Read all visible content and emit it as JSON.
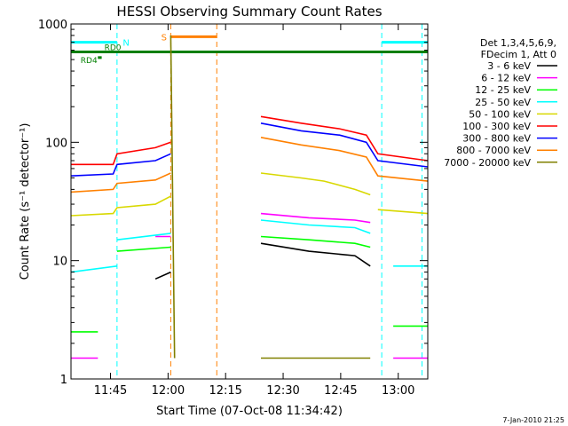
{
  "chart_data": {
    "type": "line",
    "title": "HESSI Observing Summary Count Rates",
    "xlabel": "Start Time (07-Oct-08 11:34:42)",
    "ylabel": "Count Rate (s⁻¹ detector⁻¹)",
    "x_unit": "minutes after 11:34:42",
    "xlim": [
      0,
      93
    ],
    "ylim": [
      1,
      1000
    ],
    "yscale": "log",
    "x_ticks": [
      {
        "value": 10.3,
        "label": "11:45"
      },
      {
        "value": 25.3,
        "label": "12:00"
      },
      {
        "value": 40.3,
        "label": "12:15"
      },
      {
        "value": 55.3,
        "label": "12:30"
      },
      {
        "value": 70.3,
        "label": "12:45"
      },
      {
        "value": 85.3,
        "label": "13:00"
      }
    ],
    "y_ticks": [
      {
        "value": 1,
        "label": "1"
      },
      {
        "value": 10,
        "label": "10"
      },
      {
        "value": 100,
        "label": "100"
      },
      {
        "value": 1000,
        "label": "1000"
      }
    ],
    "legend_header": [
      "Det 1,3,4,5,6,9,",
      "FDecim 1, Att 0"
    ],
    "legend_position": "right",
    "footer": "7-Jan-2010 21:25",
    "series": [
      {
        "name": "3 - 6 keV",
        "color": "#000000",
        "segments": [
          [
            [
              22,
              7
            ],
            [
              26,
              8
            ]
          ],
          [
            [
              49.5,
              14
            ],
            [
              62,
              12
            ],
            [
              74,
              11
            ],
            [
              78,
              9
            ]
          ]
        ]
      },
      {
        "name": "6 - 12 keV",
        "color": "#ff00ff",
        "segments": [
          [
            [
              0,
              1.5
            ],
            [
              7,
              1.5
            ]
          ],
          [
            [
              22,
              16
            ],
            [
              26,
              16
            ]
          ],
          [
            [
              49.5,
              25
            ],
            [
              62,
              23
            ],
            [
              74,
              22
            ],
            [
              78,
              21
            ]
          ],
          [
            [
              84,
              1.5
            ],
            [
              93,
              1.5
            ]
          ]
        ]
      },
      {
        "name": "12 - 25 keV",
        "color": "#00ff00",
        "segments": [
          [
            [
              0,
              2.5
            ],
            [
              7,
              2.5
            ]
          ],
          [
            [
              12,
              12
            ],
            [
              26,
              13
            ]
          ],
          [
            [
              49.5,
              16
            ],
            [
              62,
              15
            ],
            [
              74,
              14
            ],
            [
              78,
              13
            ]
          ],
          [
            [
              84,
              2.8
            ],
            [
              93,
              2.8
            ]
          ]
        ]
      },
      {
        "name": "25 - 50 keV",
        "color": "#00ffff",
        "segments": [
          [
            [
              0,
              8
            ],
            [
              12,
              9
            ]
          ],
          [
            [
              12,
              15
            ],
            [
              26,
              17
            ]
          ],
          [
            [
              49.5,
              22
            ],
            [
              62,
              20
            ],
            [
              74,
              19
            ],
            [
              78,
              17
            ]
          ],
          [
            [
              84,
              9
            ],
            [
              93,
              9
            ]
          ]
        ]
      },
      {
        "name": "50 - 100 keV",
        "color": "#d8d800",
        "segments": [
          [
            [
              0,
              24
            ],
            [
              11,
              25
            ],
            [
              12,
              28
            ],
            [
              22,
              30
            ],
            [
              26,
              35
            ]
          ],
          [
            [
              49.5,
              55
            ],
            [
              60,
              50
            ],
            [
              66,
              47
            ],
            [
              74,
              40
            ],
            [
              78,
              36
            ]
          ],
          [
            [
              80,
              27
            ],
            [
              93,
              25
            ]
          ]
        ]
      },
      {
        "name": "100 - 300 keV",
        "color": "#ff0000",
        "segments": [
          [
            [
              0,
              65
            ],
            [
              11,
              65
            ],
            [
              12,
              80
            ],
            [
              22,
              90
            ],
            [
              26,
              100
            ]
          ],
          [
            [
              49.5,
              165
            ],
            [
              60,
              145
            ],
            [
              70,
              130
            ],
            [
              77,
              115
            ],
            [
              80,
              80
            ],
            [
              93,
              70
            ]
          ]
        ]
      },
      {
        "name": "300 - 800 keV",
        "color": "#0000ff",
        "segments": [
          [
            [
              0,
              52
            ],
            [
              11,
              54
            ],
            [
              12,
              65
            ],
            [
              22,
              70
            ],
            [
              26,
              80
            ]
          ],
          [
            [
              49.5,
              145
            ],
            [
              60,
              125
            ],
            [
              70,
              115
            ],
            [
              77,
              100
            ],
            [
              80,
              70
            ],
            [
              93,
              62
            ]
          ]
        ]
      },
      {
        "name": "800 - 7000 keV",
        "color": "#ff8000",
        "segments": [
          [
            [
              0,
              38
            ],
            [
              11,
              40
            ],
            [
              12,
              45
            ],
            [
              22,
              48
            ],
            [
              26,
              55
            ]
          ],
          [
            [
              49.5,
              110
            ],
            [
              60,
              95
            ],
            [
              70,
              85
            ],
            [
              77,
              75
            ],
            [
              80,
              52
            ],
            [
              93,
              47
            ]
          ]
        ]
      },
      {
        "name": "7000 - 20000 keV",
        "color": "#808000",
        "segments": [
          [
            [
              26,
              800
            ],
            [
              27,
              1.5
            ]
          ],
          [
            [
              49.5,
              1.5
            ],
            [
              78,
              1.5
            ]
          ]
        ]
      }
    ],
    "annotations": [
      {
        "text": "N",
        "color": "#00ffff"
      },
      {
        "text": "S",
        "color": "#ff8000"
      },
      {
        "text": "RD0",
        "color": "#007f00"
      },
      {
        "text": "RD4",
        "color": "#007f00"
      }
    ],
    "bars": [
      {
        "name": "rd0-bar",
        "y": 580,
        "x": [
          0,
          93
        ],
        "color": "#007f00"
      },
      {
        "name": "rd4-bar",
        "y": 520,
        "x": [
          7,
          8
        ],
        "color": "#007f00"
      },
      {
        "name": "night-bar-1",
        "y": 700,
        "x": [
          0,
          12
        ],
        "color": "#00ffff"
      },
      {
        "name": "night-bar-2",
        "y": 700,
        "x": [
          81,
          93
        ],
        "color": "#00ffff"
      },
      {
        "name": "saa-bar",
        "y": 780,
        "x": [
          26,
          38
        ],
        "color": "#ff8000"
      }
    ],
    "vlines": [
      {
        "x": 12,
        "color": "#00ffff"
      },
      {
        "x": 26,
        "color": "#ff8000"
      },
      {
        "x": 38,
        "color": "#ff8000"
      },
      {
        "x": 81,
        "color": "#00ffff"
      },
      {
        "x": 91.5,
        "color": "#00ffff"
      }
    ]
  }
}
